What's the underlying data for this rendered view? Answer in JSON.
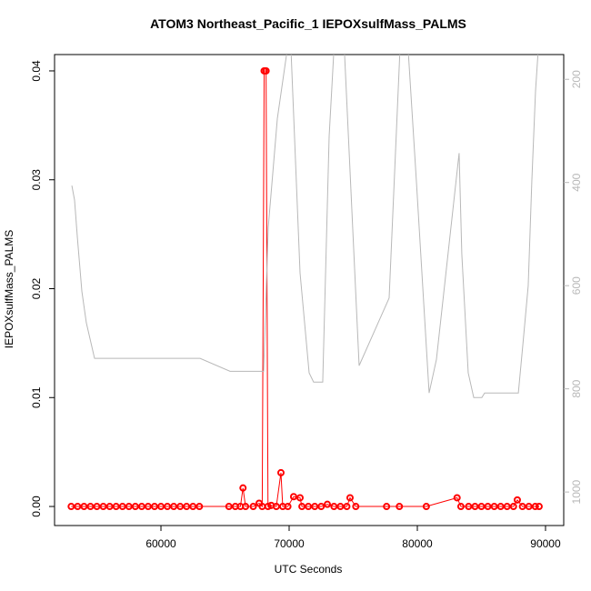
{
  "chart_data": {
    "type": "line",
    "title": "ATOM3 Northeast_Pacific_1 IEPOXsulfMass_PALMS",
    "x_label": "UTC Seconds",
    "y_label": "IEPOXsulfMass_PALMS",
    "xlim": [
      51700,
      91420
    ],
    "xticks": [
      60000,
      70000,
      80000,
      90000
    ],
    "ylim": [
      -0.00175,
      0.0415
    ],
    "yticks": [
      {
        "value": 0,
        "label": "0.00"
      },
      {
        "value": 0.01,
        "label": "0.01"
      },
      {
        "value": 0.02,
        "label": "0.02"
      },
      {
        "value": 0.03,
        "label": "0.03"
      },
      {
        "value": 0.04,
        "label": "0.04"
      }
    ],
    "y2lim": [
      1065,
      152
    ],
    "y2ticks": [
      200,
      400,
      600,
      800,
      1000
    ],
    "y2_color": "#b8b8b8",
    "series": [
      {
        "color": "#ff0000",
        "markers": true,
        "x": [
          53000,
          53500,
          54000,
          54500,
          55000,
          55500,
          56000,
          56500,
          57000,
          57500,
          58000,
          58500,
          59000,
          59500,
          60000,
          60500,
          61000,
          61500,
          62000,
          62500,
          63000,
          65300,
          65800,
          66200,
          66400,
          66600,
          67200,
          67660,
          67900,
          68050,
          68200,
          68350,
          68600,
          69000,
          69360,
          69500,
          69900,
          70350,
          70850,
          71000,
          71500,
          72000,
          72500,
          72980,
          73500,
          74000,
          74500,
          74750,
          75200,
          77600,
          78600,
          80700,
          83100,
          83400,
          84000,
          84500,
          85000,
          85500,
          86000,
          86500,
          87000,
          87500,
          87800,
          88200,
          88700,
          89200,
          89500
        ],
        "values": [
          0,
          0,
          0,
          0,
          0,
          0,
          0,
          0,
          0,
          0,
          0,
          0,
          0,
          0,
          0,
          0,
          0,
          0,
          0,
          0,
          0,
          0,
          0,
          0,
          0.0017,
          0,
          0,
          0.0003,
          0,
          0.04,
          0.04,
          0,
          0.0001,
          0,
          0.0031,
          0,
          0,
          0.0009,
          0.0008,
          0,
          0,
          0,
          0,
          0.0002,
          0,
          0,
          0,
          0.0008,
          0,
          0,
          0,
          0,
          0.0008,
          0,
          0,
          0,
          0,
          0,
          0,
          0,
          0,
          0,
          0.0006,
          0,
          0,
          0,
          0
        ]
      },
      {
        "color": "#b8b8b8",
        "axis": "y2",
        "markers": false,
        "x": [
          53050,
          53260,
          53475,
          53830,
          54180,
          54820,
          63050,
          65390,
          68010,
          68370,
          69080,
          70000,
          70140,
          70850,
          71560,
          71910,
          72620,
          73120,
          73550,
          74260,
          75460,
          77800,
          78650,
          79220,
          79930,
          80920,
          81490,
          83260,
          83470,
          83970,
          84400,
          85030,
          85250,
          87880,
          88230,
          88650,
          88930,
          89220,
          89500
        ],
        "values": [
          406,
          434,
          505,
          611,
          672,
          741,
          741,
          766,
          766,
          487,
          276,
          117,
          140,
          575,
          769,
          787,
          787,
          311,
          117,
          117,
          755,
          624,
          140,
          117,
          399,
          808,
          743,
          343,
          539,
          769,
          817,
          817,
          808,
          808,
          715,
          600,
          399,
          223,
          117
        ]
      }
    ]
  }
}
